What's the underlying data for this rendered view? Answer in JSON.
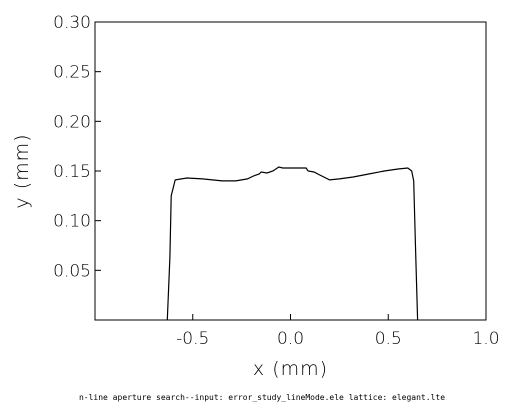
{
  "chart_data": {
    "type": "line",
    "xlabel": "x  (mm)",
    "ylabel": "y  (mm)",
    "xlim": [
      -1.0,
      1.0
    ],
    "ylim": [
      0.0,
      0.3
    ],
    "x_ticks": [
      -0.5,
      0.0,
      0.5,
      1.0
    ],
    "x_tick_labels": [
      "-0.5",
      "0.0",
      "0.5",
      "1.0"
    ],
    "y_ticks": [
      0.05,
      0.1,
      0.15,
      0.2,
      0.25,
      0.3
    ],
    "y_tick_labels": [
      "0.05",
      "0.10",
      "0.15",
      "0.20",
      "0.25",
      "0.30"
    ],
    "grid": false,
    "legend": "none",
    "line_color": "#000000",
    "series": [
      {
        "x": [
          -0.63,
          -0.617,
          -0.61,
          -0.59,
          -0.53,
          -0.45,
          -0.35,
          -0.28,
          -0.22,
          -0.19,
          -0.16,
          -0.15,
          -0.12,
          -0.09,
          -0.06,
          -0.04,
          0.0,
          0.04,
          0.08,
          0.09,
          0.12,
          0.15,
          0.2,
          0.25,
          0.32,
          0.4,
          0.48,
          0.55,
          0.6,
          0.62,
          0.63,
          0.64,
          0.65
        ],
        "y": [
          0.0,
          0.063,
          0.125,
          0.141,
          0.143,
          0.142,
          0.14,
          0.14,
          0.142,
          0.145,
          0.147,
          0.149,
          0.148,
          0.15,
          0.154,
          0.153,
          0.153,
          0.153,
          0.153,
          0.15,
          0.149,
          0.146,
          0.141,
          0.142,
          0.144,
          0.147,
          0.15,
          0.152,
          0.153,
          0.15,
          0.14,
          0.07,
          0.0
        ]
      }
    ]
  },
  "caption": "n-line aperture search--input: error_study_lineMode.ele   lattice: elegant.lte"
}
